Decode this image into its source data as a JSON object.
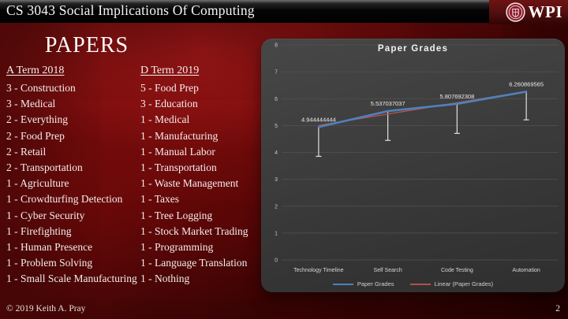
{
  "header": {
    "title": "CS 3043 Social Implications Of Computing",
    "logo_text": "WPI"
  },
  "main": {
    "heading": "PAPERS",
    "columns": [
      {
        "header": "A Term 2018",
        "items": [
          "3 - Construction",
          "3 - Medical",
          "2 - Everything",
          "2 - Food Prep",
          "2 - Retail",
          "2 - Transportation",
          "1 - Agriculture",
          "1 - Crowdturfing Detection",
          "1 - Cyber Security",
          "1 - Firefighting",
          "1 - Human Presence",
          "1 - Problem Solving",
          "1 - Small Scale Manufacturing"
        ]
      },
      {
        "header": "D Term 2019",
        "items": [
          "5 - Food Prep",
          "3 - Education",
          "1 - Medical",
          "1 - Manufacturing",
          "1 - Manual Labor",
          "1 - Transportation",
          "1 - Waste Management",
          "1 - Taxes",
          "1 - Tree Logging",
          "1 - Stock Market Trading",
          "1 - Programming",
          "1 - Language Translation",
          "1 - Nothing"
        ]
      }
    ]
  },
  "chart_data": {
    "type": "line",
    "title": "Paper Grades",
    "categories": [
      "Technology Timeline",
      "Self Search",
      "Code Testing",
      "Automation"
    ],
    "series": [
      {
        "name": "Paper Grades",
        "color": "#4f81bd",
        "values": [
          4.944444444,
          5.537037037,
          5.807692308,
          6.260869565
        ]
      },
      {
        "name": "Linear (Paper Grades)",
        "color": "#b5504b",
        "trend_of": "Paper Grades"
      }
    ],
    "data_labels": [
      "4.944444444",
      "5.537037037",
      "5.807692308",
      "6.260869565"
    ],
    "error_down": [
      1.09,
      1.09,
      1.1,
      1.05
    ],
    "ylim": [
      0,
      8
    ],
    "ytick_step": 1,
    "grid": true,
    "legend_position": "bottom"
  },
  "footer": {
    "copyright": "© 2019 Keith A. Pray",
    "slide_number": "2"
  },
  "colors": {
    "slide_red": "#6f0a0a",
    "titlebar_black": "#000000",
    "chart_bg": "#3b3b3b",
    "series_blue": "#4f81bd",
    "trend_red": "#b5504b",
    "error_bar": "#e0e0e0",
    "text": "#f3eded"
  }
}
